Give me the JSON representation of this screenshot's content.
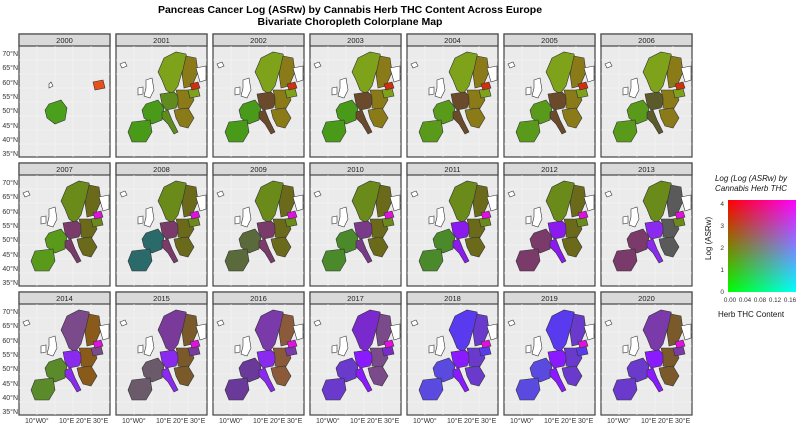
{
  "title_line1": "Pancreas Cancer Log (ASRw) by Cannabis Herb THC Content Across Europe",
  "title_line2": "Bivariate Choropleth Colorplane Map",
  "lat_labels": [
    "70°N",
    "65°N",
    "60°N",
    "55°N",
    "50°N",
    "45°N",
    "40°N",
    "35°N"
  ],
  "lon_labels": [
    "10°W",
    "0°",
    "10°E",
    "20°E",
    "30°E"
  ],
  "legend": {
    "title_line1": "Log (Log (ASRw) by",
    "title_line2": "Cannabis Herb THC",
    "y_label": "Log (ASRw)",
    "x_label": "Herb THC Content",
    "y_ticks": [
      "0",
      "1",
      "2",
      "3",
      "4"
    ],
    "x_ticks": [
      "0.00",
      "0.04",
      "0.08",
      "0.12",
      "0.16"
    ],
    "corner_colors": {
      "bottom_left": "#00ff00",
      "top_left": "#ff0000",
      "top_right": "#ff00ff",
      "bottom_right": "#00ffff"
    }
  },
  "panels": [
    {
      "year": "2000",
      "palette": [
        "#4aa01c"
      ]
    },
    {
      "year": "2001",
      "palette": [
        "#7ea21a",
        "#5f8c1c",
        "#8a7a18",
        "#4a9a1a"
      ]
    },
    {
      "year": "2002",
      "palette": [
        "#7ea21a",
        "#6a4a2a",
        "#8a7a18",
        "#4a9a1a"
      ]
    },
    {
      "year": "2003",
      "palette": [
        "#7ea21a",
        "#6a4a2a",
        "#8a7a18",
        "#4a9a1a"
      ]
    },
    {
      "year": "2004",
      "palette": [
        "#7ea21a",
        "#6a4a2a",
        "#8a7a18",
        "#5a9a1a"
      ]
    },
    {
      "year": "2005",
      "palette": [
        "#7ea21a",
        "#6a4a2a",
        "#8a7a18",
        "#5a9a1a"
      ]
    },
    {
      "year": "2006",
      "palette": [
        "#7ea21a",
        "#5a5a2a",
        "#8a7a18",
        "#5a9a1a"
      ]
    },
    {
      "year": "2007",
      "palette": [
        "#6a8a1a",
        "#7a3a6a",
        "#6a6a1a",
        "#5a9a1a"
      ]
    },
    {
      "year": "2008",
      "palette": [
        "#6a8a1a",
        "#7a3a6a",
        "#6a6a1a",
        "#2a6a6a"
      ]
    },
    {
      "year": "2009",
      "palette": [
        "#6a8a1a",
        "#7a3a6a",
        "#6a6a1a",
        "#5a6a3a"
      ]
    },
    {
      "year": "2010",
      "palette": [
        "#6a8a1a",
        "#7a3a8a",
        "#6a6a1a",
        "#4a8a2a"
      ]
    },
    {
      "year": "2011",
      "palette": [
        "#6a8a1a",
        "#8a1aee",
        "#6a6a1a",
        "#4a8a2a"
      ]
    },
    {
      "year": "2012",
      "palette": [
        "#6a8a1a",
        "#8a1aee",
        "#6a6a1a",
        "#7a3a6a"
      ]
    },
    {
      "year": "2013",
      "palette": [
        "#6a8a1a",
        "#8a2aee",
        "#5a5a5a",
        "#7a3a6a"
      ]
    },
    {
      "year": "2014",
      "palette": [
        "#7a4a8a",
        "#8a2aee",
        "#8a5a1a",
        "#5a8a2a"
      ]
    },
    {
      "year": "2015",
      "palette": [
        "#7a3a9a",
        "#8a2aee",
        "#7a5a2a",
        "#6a5a6a"
      ]
    },
    {
      "year": "2016",
      "palette": [
        "#7a3aaa",
        "#8a2aee",
        "#8a5a3a",
        "#6a3a9a"
      ]
    },
    {
      "year": "2017",
      "palette": [
        "#7a2acc",
        "#8a1aff",
        "#7a4a8a",
        "#6a3acc"
      ]
    },
    {
      "year": "2018",
      "palette": [
        "#5a3aee",
        "#8a1aff",
        "#6a3acc",
        "#5a4ae0"
      ]
    },
    {
      "year": "2019",
      "palette": [
        "#5a3aee",
        "#8a1aff",
        "#6a3acc",
        "#5a4ae0"
      ]
    },
    {
      "year": "2020",
      "palette": [
        "#7a3aaa",
        "#8a1aff",
        "#7a5a2a",
        "#6a3acc"
      ]
    }
  ]
}
